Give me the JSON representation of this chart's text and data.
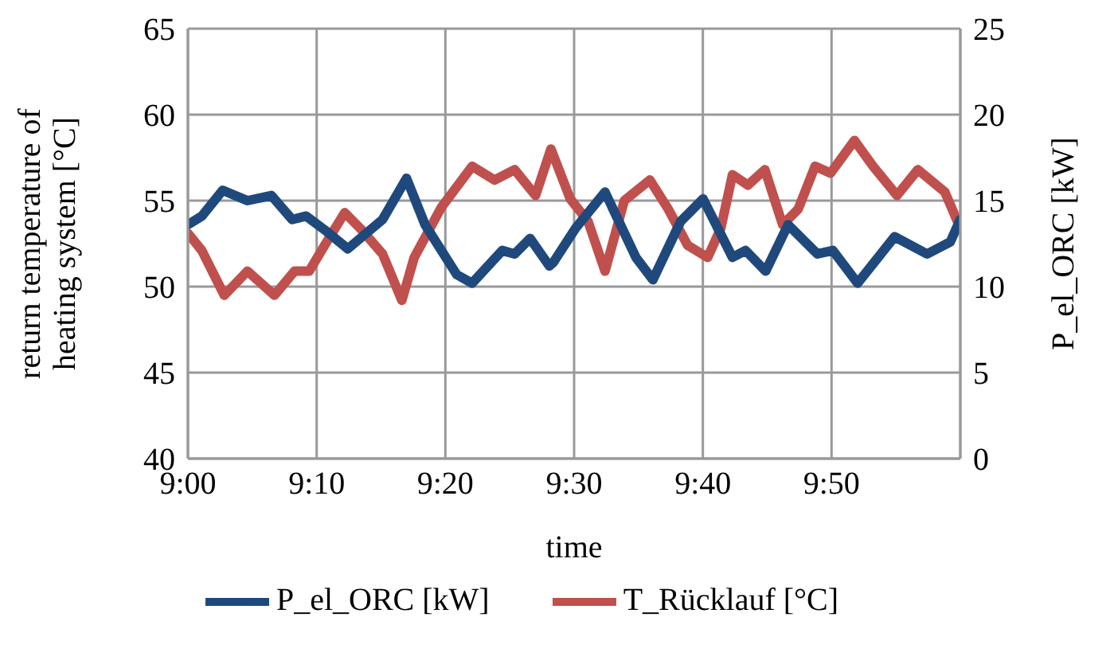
{
  "chart_data": {
    "type": "line",
    "xlabel": "time",
    "ylabel": "return temperature of heating system [°C]",
    "y2label": "P_el_ORC [kW]",
    "xlim": [
      9,
      10
    ],
    "xticks": [
      {
        "value": 9,
        "label": "9:00"
      },
      {
        "value": 9.1667,
        "label": "9:10"
      },
      {
        "value": 9.3333,
        "label": "9:20"
      },
      {
        "value": 9.5,
        "label": "9:30"
      },
      {
        "value": 9.6667,
        "label": "9:40"
      },
      {
        "value": 9.8333,
        "label": "9:50"
      }
    ],
    "ylim": [
      40,
      65
    ],
    "yticks": [
      40,
      45,
      50,
      55,
      60,
      65
    ],
    "y2lim": [
      0,
      25
    ],
    "y2ticks": [
      0,
      5,
      10,
      15,
      20,
      25
    ],
    "grid": true,
    "legend": "bottom",
    "marker": "none",
    "line_style": "solid",
    "series": [
      {
        "name": "T_Rücklauf [°C]",
        "color": "#c0504d",
        "x": [
          9,
          9.018,
          9.047,
          9.077,
          9.112,
          9.138,
          9.157,
          9.177,
          9.203,
          9.225,
          9.252,
          9.277,
          9.293,
          9.328,
          9.368,
          9.397,
          9.423,
          9.45,
          9.47,
          9.495,
          9.518,
          9.54,
          9.565,
          9.598,
          9.622,
          9.647,
          9.673,
          9.69,
          9.705,
          9.725,
          9.747,
          9.77,
          9.79,
          9.812,
          9.832,
          9.863,
          9.887,
          9.918,
          9.945,
          9.98,
          10
        ],
        "values": [
          53.1,
          52.1,
          49.5,
          50.9,
          49.5,
          50.9,
          50.9,
          52.4,
          54.3,
          53.3,
          51.9,
          49.2,
          51.7,
          54.6,
          57.0,
          56.2,
          56.8,
          55.3,
          58.0,
          55.1,
          53.8,
          50.9,
          55.0,
          56.2,
          54.5,
          52.4,
          51.7,
          53.4,
          56.5,
          55.9,
          56.8,
          53.6,
          54.5,
          57.0,
          56.6,
          58.5,
          57.0,
          55.3,
          56.8,
          55.5,
          53.4
        ]
      },
      {
        "name": "P_el_ORC [kW]",
        "color": "#1f497d",
        "axis": "y2",
        "x": [
          9,
          9.018,
          9.045,
          9.077,
          9.108,
          9.135,
          9.153,
          9.177,
          9.207,
          9.252,
          9.283,
          9.307,
          9.348,
          9.368,
          9.407,
          9.423,
          9.443,
          9.468,
          9.473,
          9.502,
          9.54,
          9.58,
          9.602,
          9.638,
          9.667,
          9.705,
          9.722,
          9.748,
          9.777,
          9.815,
          9.835,
          9.867,
          9.915,
          9.957,
          9.987,
          10
        ],
        "values": [
          13.6,
          14.1,
          15.6,
          15.0,
          15.3,
          13.9,
          14.1,
          13.3,
          12.2,
          13.9,
          16.3,
          13.6,
          10.7,
          10.2,
          12.1,
          11.9,
          12.8,
          11.2,
          11.4,
          13.4,
          15.5,
          11.7,
          10.4,
          13.8,
          15.1,
          11.7,
          12.1,
          10.9,
          13.6,
          11.9,
          12.1,
          10.2,
          12.9,
          11.9,
          12.6,
          13.9
        ]
      }
    ]
  }
}
